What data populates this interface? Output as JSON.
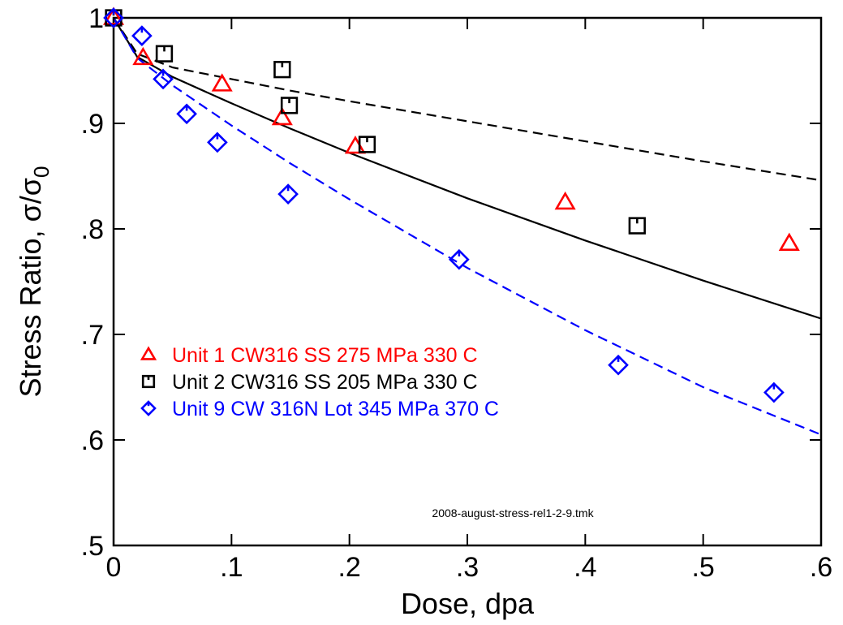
{
  "chart_data": {
    "type": "scatter",
    "xlabel": "Dose, dpa",
    "ylabel_main": "Stress Ratio, σ/σ",
    "ylabel_subscript": "0",
    "xlim": [
      0,
      0.6
    ],
    "ylim": [
      0.5,
      1.0
    ],
    "x_ticks": [
      0,
      0.1,
      0.2,
      0.3,
      0.4,
      0.5,
      0.6
    ],
    "x_tick_labels": [
      "0",
      ".1",
      ".2",
      ".3",
      ".4",
      ".5",
      ".6"
    ],
    "y_ticks": [
      0.5,
      0.6,
      0.7,
      0.8,
      0.9,
      1.0
    ],
    "y_tick_labels": [
      ".5",
      ".6",
      ".7",
      ".8",
      ".9",
      "1"
    ],
    "grid": false,
    "legend_position": "lower-left",
    "annotation": "2008-august-stress-rel1-2-9.tmk",
    "series": [
      {
        "name": "Unit 1 CW316 SS 275 MPa 330 C",
        "color": "#ff0000",
        "marker": "triangle",
        "points": [
          [
            0,
            1.0
          ],
          [
            0.025,
            0.962
          ],
          [
            0.092,
            0.937
          ],
          [
            0.143,
            0.905
          ],
          [
            0.205,
            0.878
          ],
          [
            0.383,
            0.825
          ],
          [
            0.573,
            0.786
          ]
        ]
      },
      {
        "name": "Unit 2 CW316 SS 205 MPa 330 C",
        "color": "#000000",
        "marker": "square",
        "points": [
          [
            0,
            1.0
          ],
          [
            0.043,
            0.966
          ],
          [
            0.143,
            0.951
          ],
          [
            0.149,
            0.917
          ],
          [
            0.215,
            0.88
          ],
          [
            0.444,
            0.803
          ]
        ]
      },
      {
        "name": "Unit 9 CW 316N Lot 345 MPa 370 C",
        "color": "#0000ff",
        "marker": "diamond",
        "points": [
          [
            0,
            1.0
          ],
          [
            0.024,
            0.983
          ],
          [
            0.042,
            0.942
          ],
          [
            0.062,
            0.909
          ],
          [
            0.088,
            0.882
          ],
          [
            0.148,
            0.833
          ],
          [
            0.293,
            0.771
          ],
          [
            0.428,
            0.671
          ],
          [
            0.56,
            0.645
          ]
        ]
      }
    ],
    "fit_lines": [
      {
        "color": "#000000",
        "style": "dashed",
        "points": [
          [
            0,
            1.0
          ],
          [
            0.02,
            0.966
          ],
          [
            0.05,
            0.953
          ],
          [
            0.1,
            0.942
          ],
          [
            0.15,
            0.931
          ],
          [
            0.2,
            0.921
          ],
          [
            0.3,
            0.902
          ],
          [
            0.4,
            0.883
          ],
          [
            0.5,
            0.864
          ],
          [
            0.6,
            0.846
          ]
        ]
      },
      {
        "color": "#000000",
        "style": "solid",
        "points": [
          [
            0,
            1.0
          ],
          [
            0.02,
            0.963
          ],
          [
            0.05,
            0.944
          ],
          [
            0.1,
            0.919
          ],
          [
            0.15,
            0.895
          ],
          [
            0.2,
            0.872
          ],
          [
            0.3,
            0.829
          ],
          [
            0.4,
            0.789
          ],
          [
            0.5,
            0.751
          ],
          [
            0.6,
            0.715
          ]
        ]
      },
      {
        "color": "#0000ff",
        "style": "dashed",
        "points": [
          [
            0,
            1.0
          ],
          [
            0.02,
            0.962
          ],
          [
            0.05,
            0.936
          ],
          [
            0.1,
            0.898
          ],
          [
            0.15,
            0.862
          ],
          [
            0.2,
            0.828
          ],
          [
            0.3,
            0.763
          ],
          [
            0.4,
            0.704
          ],
          [
            0.5,
            0.65
          ],
          [
            0.6,
            0.605
          ]
        ]
      }
    ]
  }
}
